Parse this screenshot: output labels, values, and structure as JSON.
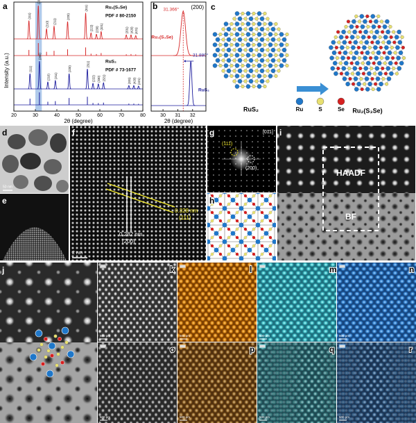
{
  "chart_data": [
    {
      "type": "line",
      "letter": "a",
      "x_label": "2θ (degree)",
      "y_label": "Intensity (a.u.)",
      "xlim": [
        20,
        80
      ],
      "xticks": [
        20,
        30,
        40,
        50,
        60,
        70,
        80
      ],
      "highlight": [
        30,
        33
      ],
      "highlight_color": "#8fb3e3",
      "series": [
        {
          "name": "Ru₂(S₃Se)",
          "color": "#d62728",
          "x": [
            27.0,
            31.37,
            35.2,
            38.7,
            45.0,
            53.4,
            55.9,
            58.4,
            60.6,
            72.3,
            74.5,
            76.7
          ],
          "values": [
            55,
            100,
            30,
            38,
            52,
            78,
            18,
            14,
            22,
            12,
            12,
            10
          ],
          "peak_labels": [
            "(111)",
            "(200)",
            "(210)",
            "(211)",
            "(220)",
            "(311)",
            "(222)",
            "(230)",
            "(321)",
            "(331)",
            "(420)",
            "(421)"
          ],
          "reference": {
            "name": "PDF # 80-2150",
            "values": [
              45,
              100,
              30,
              38,
              50,
              65,
              15,
              12,
              20,
              10,
              12,
              9
            ]
          }
        },
        {
          "name": "RuS₂",
          "color": "#1a1a9c",
          "x": [
            27.5,
            31.88,
            35.8,
            39.3,
            45.7,
            54.2,
            56.8,
            59.3,
            61.7,
            73.5,
            75.8,
            78.0
          ],
          "values": [
            55,
            100,
            25,
            30,
            55,
            72,
            20,
            18,
            22,
            12,
            12,
            10
          ],
          "peak_labels": [
            "(111)",
            "(200)",
            "(210)",
            "(211)",
            "(220)",
            "(311)",
            "(222)",
            "(230)",
            "(321)",
            "(331)",
            "(420)",
            "(421)"
          ],
          "reference": {
            "name": "PDF # 73-1677",
            "values": [
              50,
              100,
              25,
              30,
              55,
              65,
              15,
              14,
              18,
              10,
              10,
              8
            ]
          }
        }
      ]
    },
    {
      "type": "line",
      "letter": "b",
      "title": "(200)",
      "x_label": "2θ (degree)",
      "xlim": [
        29.2,
        32.9
      ],
      "xticks": [
        30,
        31,
        32
      ],
      "series": [
        {
          "name": "Ru₂(S₃Se)",
          "color": "#d62728",
          "x": [
            31.366
          ],
          "values": [
            100
          ],
          "x_labels": [
            "31.366°"
          ]
        },
        {
          "name": "RuS₂",
          "color": "#1a1a9c",
          "x": [
            31.88
          ],
          "values": [
            100
          ],
          "x_labels": [
            "31.880°"
          ]
        }
      ]
    }
  ],
  "panel_c": {
    "letter": "c",
    "left_label": "RuS₂",
    "right_label": "Ru₂(S₃Se)",
    "legend": [
      {
        "name": "Ru",
        "color": "#1f77c9"
      },
      {
        "name": "S",
        "color": "#e8e070"
      },
      {
        "name": "Se",
        "color": "#d62020"
      }
    ]
  },
  "panel_d": {
    "letter": "d",
    "scale": "50 nm"
  },
  "panel_e": {
    "letter": "e"
  },
  "panel_f": {
    "letter": "f",
    "scale": "2 nm",
    "d1": "0.282 nm",
    "plane1": "(200)",
    "d2": "0.328 nm",
    "plane2": "(111)"
  },
  "panel_g": {
    "letter": "g",
    "zone": "[011]",
    "spot1": "(111)",
    "spot2": "(200)"
  },
  "panel_h": {
    "letter": "h"
  },
  "panel_i": {
    "letter": "i",
    "top": "HAADF",
    "bottom": "BF"
  },
  "panel_j": {
    "letter": "j"
  },
  "maps": [
    {
      "letter": "k",
      "scale": "500 pm"
    },
    {
      "letter": "l",
      "scale": "500 pm"
    },
    {
      "letter": "m",
      "scale": "500 pm"
    },
    {
      "letter": "n",
      "scale": "500 pm"
    },
    {
      "letter": "o",
      "scale": "500 pm"
    },
    {
      "letter": "p",
      "scale": "500 pm"
    },
    {
      "letter": "q",
      "scale": "500 pm"
    },
    {
      "letter": "r",
      "scale": "500 pm"
    }
  ]
}
